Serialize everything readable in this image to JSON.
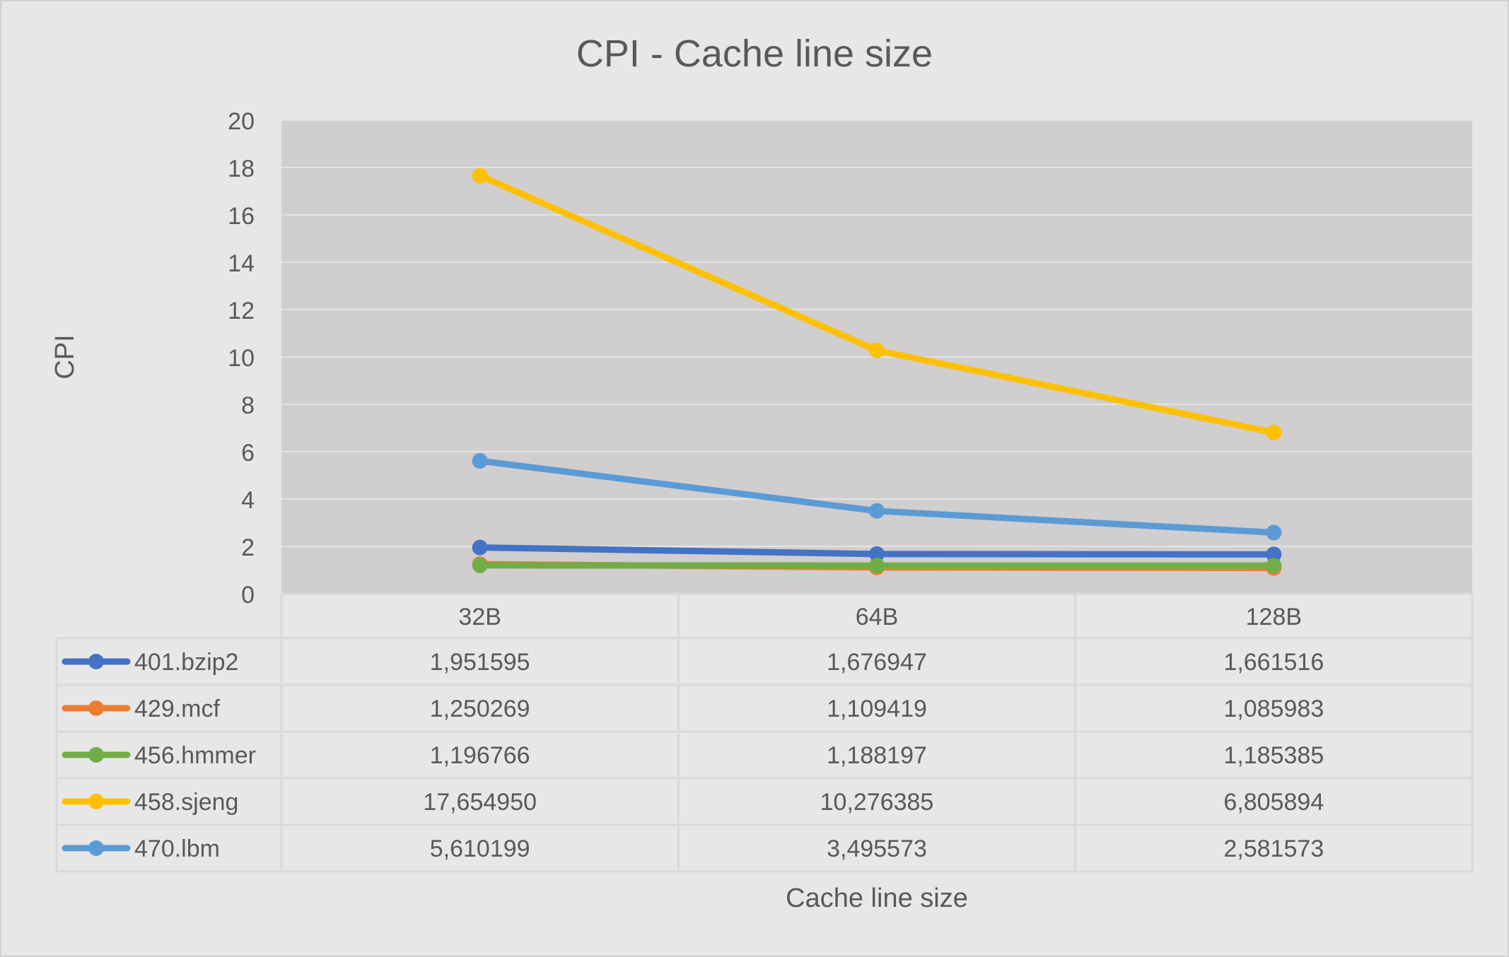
{
  "chart_data": {
    "type": "line",
    "title": "CPI - Cache line size",
    "xlabel": "Cache line size",
    "ylabel": "CPI",
    "ylim": [
      0,
      20
    ],
    "yticks": [
      0,
      2,
      4,
      6,
      8,
      10,
      12,
      14,
      16,
      18,
      20
    ],
    "grid": true,
    "legend": "data-table",
    "categories": [
      "32B",
      "64B",
      "128B"
    ],
    "series": [
      {
        "name": "401.bzip2",
        "color": "#4472c4",
        "values": [
          1.951595,
          1.676947,
          1.661516
        ],
        "labels": [
          "1,951595",
          "1,676947",
          "1,661516"
        ]
      },
      {
        "name": "429.mcf",
        "color": "#ed7d31",
        "values": [
          1.250269,
          1.109419,
          1.085983
        ],
        "labels": [
          "1,250269",
          "1,109419",
          "1,085983"
        ]
      },
      {
        "name": "456.hmmer",
        "color": "#70ad47",
        "values": [
          1.196766,
          1.188197,
          1.185385
        ],
        "labels": [
          "1,196766",
          "1,188197",
          "1,185385"
        ]
      },
      {
        "name": "458.sjeng",
        "color": "#ffc000",
        "values": [
          17.65495,
          10.276385,
          6.805894
        ],
        "labels": [
          "17,654950",
          "10,276385",
          "6,805894"
        ]
      },
      {
        "name": "470.lbm",
        "color": "#5b9bd5",
        "values": [
          5.610199,
          3.495573,
          2.581573
        ],
        "labels": [
          "5,610199",
          "3,495573",
          "2,581573"
        ]
      }
    ]
  }
}
